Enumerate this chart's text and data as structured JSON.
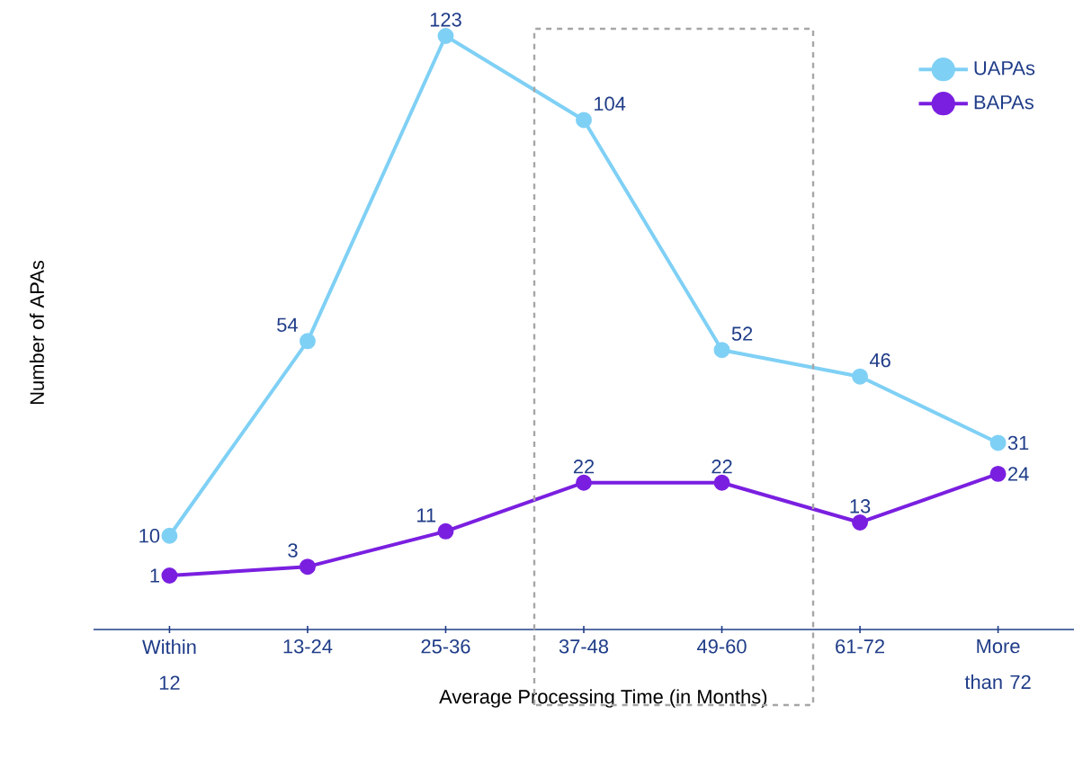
{
  "chart_data": {
    "type": "line",
    "xlabel": "Average Processing Time (in Months)",
    "ylabel": "Number of APAs",
    "categories": [
      "Within 12",
      "13-24",
      "25-36",
      "37-48",
      "49-60",
      "61-72",
      "More than 72"
    ],
    "series": [
      {
        "name": "UAPAs",
        "color": "#7fd0f5",
        "values": [
          10,
          54,
          123,
          104,
          52,
          46,
          31
        ]
      },
      {
        "name": "BAPAs",
        "color": "#7a1fe0",
        "values": [
          1,
          3,
          11,
          22,
          22,
          13,
          24
        ]
      }
    ],
    "data_labels": true,
    "legend": "top right",
    "marker": "circle",
    "line_style": "solid",
    "grid": false,
    "tick_labels": "x"
  }
}
